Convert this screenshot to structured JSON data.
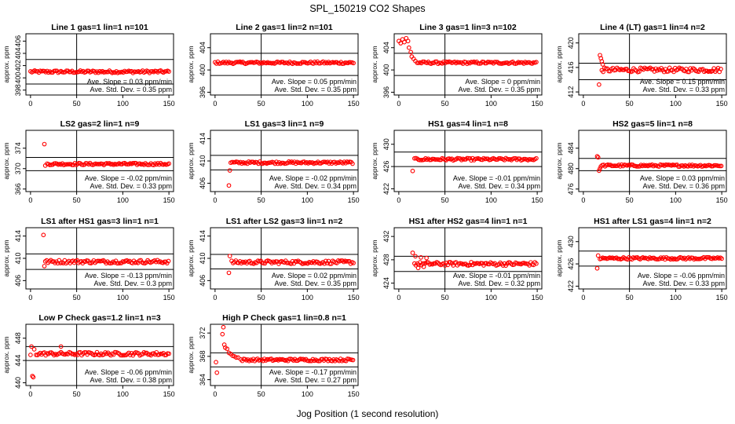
{
  "figure": {
    "title": "SPL_150219  CO2 Shapes",
    "xlabel": "Jog Position (1 second resolution)",
    "point_color": "#ff0000"
  },
  "chart_data": [
    {
      "type": "scatter",
      "title": "Line 1 gas=1 lin=1 n=101",
      "ylabel": "approx. ppm",
      "xlim": [
        -5,
        155
      ],
      "xticks": [
        0,
        50,
        100,
        150
      ],
      "ylim": [
        397.2,
        407.2
      ],
      "yticks": [
        398,
        400,
        402,
        404,
        406
      ],
      "hlines": [
        403,
        399
      ],
      "vline": 50,
      "stats": [
        "Ave. Slope =  0.03  ppm/min",
        "Ave. Std. Dev. =  0.35  ppm"
      ],
      "segments": [
        {
          "x_start": 0,
          "x_end": 150,
          "level": 401,
          "noise": 0.2
        }
      ],
      "spikes": []
    },
    {
      "type": "scatter",
      "title": "Line 2 gas=1 lin=2 n=101",
      "ylabel": "approx. ppm",
      "xlim": [
        -5,
        155
      ],
      "xticks": [
        0,
        50,
        100,
        150
      ],
      "ylim": [
        395.5,
        406.5
      ],
      "yticks": [
        396,
        400,
        404
      ],
      "hlines": [
        403,
        399
      ],
      "vline": 50,
      "stats": [
        "Ave. Slope =  0.05  ppm/min",
        "Ave. Std. Dev. =  0.35  ppm"
      ],
      "segments": [
        {
          "x_start": 0,
          "x_end": 150,
          "level": 401.3,
          "noise": 0.2
        }
      ],
      "spikes": []
    },
    {
      "type": "scatter",
      "title": "Line 3 gas=1 lin=3 n=102",
      "ylabel": "approx. ppm",
      "xlim": [
        -5,
        155
      ],
      "xticks": [
        0,
        50,
        100,
        150
      ],
      "ylim": [
        395.5,
        406.5
      ],
      "yticks": [
        396,
        400,
        404
      ],
      "hlines": [
        403,
        399
      ],
      "vline": 50,
      "stats": [
        "Ave. Slope = 0  ppm/min",
        "Ave. Std. Dev. =  0.35  ppm"
      ],
      "segments": [
        {
          "x_start": 20,
          "x_end": 150,
          "level": 401.3,
          "noise": 0.2
        }
      ],
      "spikes": [
        [
          0,
          405.2
        ],
        [
          2,
          404.8
        ],
        [
          4,
          405.5
        ],
        [
          6,
          405.0
        ],
        [
          8,
          405.7
        ],
        [
          10,
          405.2
        ],
        [
          11,
          404.0
        ],
        [
          13,
          403.2
        ],
        [
          14,
          402.4
        ],
        [
          16,
          402.0
        ],
        [
          18,
          401.6
        ]
      ]
    },
    {
      "type": "scatter",
      "title": "Line 4 (LT) gas=1 lin=4 n=2",
      "ylabel": "approx. ppm",
      "xlim": [
        -5,
        155
      ],
      "xticks": [
        0,
        50,
        100,
        150
      ],
      "ylim": [
        411.5,
        421.5
      ],
      "yticks": [
        412,
        416,
        420
      ],
      "hlines": [
        416.7,
        414.0
      ],
      "vline": 50,
      "stats": [
        "Ave. Slope =  0.15  ppm/min",
        "Ave. Std. Dev. =  0.33  ppm"
      ],
      "segments": [
        {
          "x_start": 20,
          "x_end": 150,
          "level": 415.6,
          "noise": 0.35
        }
      ],
      "spikes": [
        [
          17,
          413.2
        ],
        [
          18,
          418.0
        ],
        [
          19,
          417.5
        ],
        [
          20,
          417.0
        ],
        [
          21,
          416.5
        ]
      ]
    },
    {
      "type": "scatter",
      "title": "LS2 gas=2 lin=1 n=9",
      "ylabel": "approx. ppm",
      "xlim": [
        -5,
        155
      ],
      "xticks": [
        0,
        50,
        100,
        150
      ],
      "ylim": [
        365.5,
        377.5
      ],
      "yticks": [
        366,
        370,
        374
      ],
      "hlines": [
        372.2,
        369.6
      ],
      "vline": 50,
      "stats": [
        "Ave. Slope =  -0.02  ppm/min",
        "Ave. Std. Dev. =  0.33  ppm"
      ],
      "segments": [
        {
          "x_start": 18,
          "x_end": 150,
          "level": 370.9,
          "noise": 0.2
        }
      ],
      "spikes": [
        [
          15,
          374.8
        ],
        [
          16,
          370.6
        ]
      ]
    },
    {
      "type": "scatter",
      "title": "LS1 gas=3 lin=1 n=9",
      "ylabel": "approx. ppm",
      "xlim": [
        -5,
        155
      ],
      "xticks": [
        0,
        50,
        100,
        150
      ],
      "ylim": [
        404.5,
        415.5
      ],
      "yticks": [
        406,
        410,
        414
      ],
      "hlines": [
        411,
        408.4
      ],
      "vline": 50,
      "stats": [
        "Ave. Slope =  -0.02  ppm/min",
        "Ave. Std. Dev. =  0.34  ppm"
      ],
      "segments": [
        {
          "x_start": 17,
          "x_end": 150,
          "level": 409.7,
          "noise": 0.2
        }
      ],
      "spikes": [
        [
          15,
          405.6
        ],
        [
          16,
          408.3
        ]
      ]
    },
    {
      "type": "scatter",
      "title": "HS1 gas=4 lin=1 n=8",
      "ylabel": "approx. ppm",
      "xlim": [
        -5,
        155
      ],
      "xticks": [
        0,
        50,
        100,
        150
      ],
      "ylim": [
        421.5,
        432.5
      ],
      "yticks": [
        422,
        426,
        430
      ],
      "hlines": [
        428.6,
        426.0
      ],
      "vline": 50,
      "stats": [
        "Ave. Slope =  -0.01  ppm/min",
        "Ave. Std. Dev. =  0.34  ppm"
      ],
      "segments": [
        {
          "x_start": 17,
          "x_end": 150,
          "level": 427.3,
          "noise": 0.2
        }
      ],
      "spikes": [
        [
          15,
          425.2
        ]
      ]
    },
    {
      "type": "scatter",
      "title": "HS2 gas=5 lin=1 n=8",
      "ylabel": "approx. ppm",
      "xlim": [
        -5,
        155
      ],
      "xticks": [
        0,
        50,
        100,
        150
      ],
      "ylim": [
        475.5,
        487.5
      ],
      "yticks": [
        476,
        480,
        484
      ],
      "hlines": [
        482.0,
        479.6
      ],
      "vline": 50,
      "stats": [
        "Ave. Slope =  0.03  ppm/min",
        "Ave. Std. Dev. =  0.36  ppm"
      ],
      "segments": [
        {
          "x_start": 19,
          "x_end": 150,
          "level": 480.6,
          "noise": 0.2
        }
      ],
      "spikes": [
        [
          15,
          482.4
        ],
        [
          16,
          482.2
        ],
        [
          17,
          479.6
        ],
        [
          18,
          480.0
        ]
      ]
    },
    {
      "type": "scatter",
      "title": "LS1 after HS1 gas=3 lin=1 n=1",
      "ylabel": "approx. ppm",
      "xlim": [
        -5,
        155
      ],
      "xticks": [
        0,
        50,
        100,
        150
      ],
      "ylim": [
        404.5,
        415.5
      ],
      "yticks": [
        406,
        410,
        414
      ],
      "hlines": [
        410.8,
        408.0
      ],
      "vline": 50,
      "stats": [
        "Ave. Slope =  -0.13  ppm/min",
        "Ave. Std. Dev. =  0.3  ppm"
      ],
      "segments": [
        {
          "x_start": 16,
          "x_end": 150,
          "level": 409.4,
          "noise": 0.3
        }
      ],
      "spikes": [
        [
          14,
          414.2
        ],
        [
          15,
          408.6
        ]
      ]
    },
    {
      "type": "scatter",
      "title": "LS1 after LS2 gas=3 lin=1 n=2",
      "ylabel": "approx. ppm",
      "xlim": [
        -5,
        155
      ],
      "xticks": [
        0,
        50,
        100,
        150
      ],
      "ylim": [
        404.5,
        415.5
      ],
      "yticks": [
        406,
        410,
        414
      ],
      "hlines": [
        410.7,
        408.1
      ],
      "vline": 50,
      "stats": [
        "Ave. Slope =  0.02  ppm/min",
        "Ave. Std. Dev. =  0.35  ppm"
      ],
      "segments": [
        {
          "x_start": 18,
          "x_end": 150,
          "level": 409.3,
          "noise": 0.3
        }
      ],
      "spikes": [
        [
          15,
          407.4
        ],
        [
          16,
          410.4
        ]
      ]
    },
    {
      "type": "scatter",
      "title": "HS1 after HS2 gas=4 lin=1 n=1",
      "ylabel": "approx. ppm",
      "xlim": [
        -5,
        155
      ],
      "xticks": [
        0,
        50,
        100,
        150
      ],
      "ylim": [
        423,
        433.5
      ],
      "yticks": [
        424,
        428,
        432
      ],
      "hlines": [
        428.6,
        426.0
      ],
      "vline": 50,
      "stats": [
        "Ave. Slope =  -0.01  ppm/min",
        "Ave. Std. Dev. =  0.32  ppm"
      ],
      "segments": [
        {
          "x_start": 17,
          "x_end": 150,
          "level": 427.3,
          "noise": 0.3
        }
      ],
      "spikes": [
        [
          15,
          429.2
        ],
        [
          18,
          428.6
        ],
        [
          21,
          426.6
        ],
        [
          24,
          428.4
        ],
        [
          27,
          426.8
        ],
        [
          30,
          428.3
        ]
      ]
    },
    {
      "type": "scatter",
      "title": "HS1 after LS1 gas=4 lin=1 n=2",
      "ylabel": "approx. ppm",
      "xlim": [
        -5,
        155
      ],
      "xticks": [
        0,
        50,
        100,
        150
      ],
      "ylim": [
        421.5,
        432.5
      ],
      "yticks": [
        422,
        426,
        430
      ],
      "hlines": [
        428.3,
        425.6
      ],
      "vline": 50,
      "stats": [
        "Ave. Slope =  -0.06  ppm/min",
        "Ave. Std. Dev. =  0.33  ppm"
      ],
      "segments": [
        {
          "x_start": 18,
          "x_end": 150,
          "level": 427.0,
          "noise": 0.2
        }
      ],
      "spikes": [
        [
          15,
          425.2
        ],
        [
          16,
          427.5
        ]
      ]
    },
    {
      "type": "scatter",
      "title": "Low P Check gas=1.2 lin=1 n=3",
      "ylabel": "approx. ppm",
      "xlim": [
        -5,
        155
      ],
      "xticks": [
        0,
        50,
        100,
        150
      ],
      "ylim": [
        439.5,
        450.5
      ],
      "yticks": [
        440,
        444,
        448
      ],
      "hlines": [
        446.5,
        444.0
      ],
      "vline": 50,
      "stats": [
        "Ave. Slope =  -0.06  ppm/min",
        "Ave. Std. Dev. =  0.38  ppm"
      ],
      "segments": [
        {
          "x_start": 6,
          "x_end": 150,
          "level": 445.2,
          "noise": 0.3
        }
      ],
      "spikes": [
        [
          0,
          445.0
        ],
        [
          1,
          446.5
        ],
        [
          2,
          441.2
        ],
        [
          3,
          441.0
        ],
        [
          4,
          446.0
        ],
        [
          33,
          446.5
        ]
      ]
    },
    {
      "type": "scatter",
      "title": "High P Check gas=1 lin=0.8 n=1",
      "ylabel": "approx. ppm",
      "xlim": [
        -5,
        155
      ],
      "xticks": [
        0,
        50,
        100,
        150
      ],
      "ylim": [
        363,
        373.5
      ],
      "yticks": [
        364,
        368,
        372
      ],
      "hlines": [
        368.6,
        366.2
      ],
      "vline": 50,
      "stats": [
        "Ave. Slope =  -0.17  ppm/min",
        "Ave. Std. Dev. =  0.27  ppm"
      ],
      "segments": [
        {
          "x_start": 28,
          "x_end": 150,
          "level": 367.4,
          "noise": 0.2
        }
      ],
      "spikes": [
        [
          1,
          367.0
        ],
        [
          2,
          365.2
        ],
        [
          8,
          371.8
        ],
        [
          9,
          373.0
        ],
        [
          10,
          370.0
        ],
        [
          11,
          369.5
        ],
        [
          13,
          369.3
        ],
        [
          15,
          368.6
        ],
        [
          17,
          368.4
        ],
        [
          19,
          368.1
        ],
        [
          21,
          368.0
        ],
        [
          23,
          367.8
        ],
        [
          25,
          367.8
        ]
      ]
    }
  ]
}
